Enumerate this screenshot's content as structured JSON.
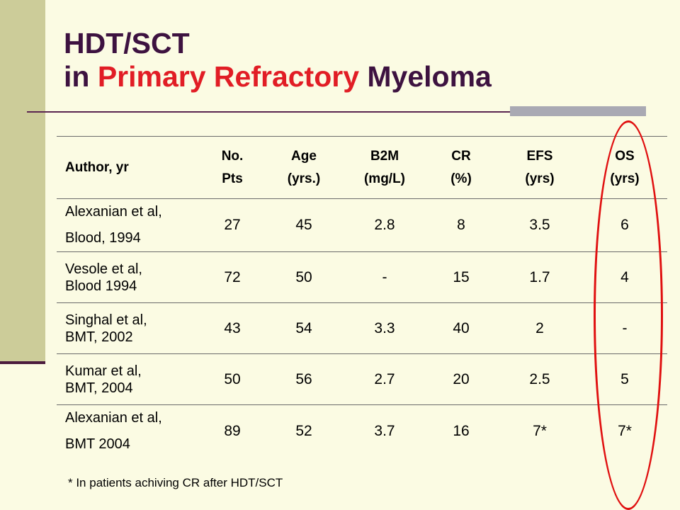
{
  "title": {
    "line1": "HDT/SCT",
    "line2_prefix": "in ",
    "line2_accent": "Primary Refractory",
    "line2_suffix": " Myeloma"
  },
  "colors": {
    "background": "#fbfbe3",
    "sidebar": "#cccc99",
    "title": "#3d1240",
    "accent": "#e11d25",
    "oval": "#e01010"
  },
  "table": {
    "headers": [
      {
        "line1": "Author, yr",
        "line2": ""
      },
      {
        "line1": "No.",
        "line2": "Pts"
      },
      {
        "line1": "Age",
        "line2": "(yrs.)"
      },
      {
        "line1": "B2M",
        "line2": "(mg/L)"
      },
      {
        "line1": "CR",
        "line2": "(%)"
      },
      {
        "line1": "EFS",
        "line2": "(yrs)"
      },
      {
        "line1": "OS",
        "line2": "(yrs)"
      }
    ],
    "rows": [
      {
        "author1": "Alexanian et al,",
        "author2": "Blood, 1994",
        "pts": "27",
        "age": "45",
        "b2m": "2.8",
        "cr": "8",
        "efs": "3.5",
        "os": "6"
      },
      {
        "author1": "Vesole et al,",
        "author2": "Blood 1994",
        "pts": "72",
        "age": "50",
        "b2m": "-",
        "cr": "15",
        "efs": "1.7",
        "os": "4"
      },
      {
        "author1": "Singhal et al,",
        "author2": "BMT, 2002",
        "pts": "43",
        "age": "54",
        "b2m": "3.3",
        "cr": "40",
        "efs": "2",
        "os": "-"
      },
      {
        "author1": "Kumar et al,",
        "author2": "BMT, 2004",
        "pts": "50",
        "age": "56",
        "b2m": "2.7",
        "cr": "20",
        "efs": "2.5",
        "os": "5"
      },
      {
        "author1": "Alexanian et al,",
        "author2": "BMT 2004",
        "pts": "89",
        "age": "52",
        "b2m": "3.7",
        "cr": "16",
        "efs": "7*",
        "os": "7*"
      }
    ]
  },
  "footnote": "* In patients achiving CR after HDT/SCT"
}
